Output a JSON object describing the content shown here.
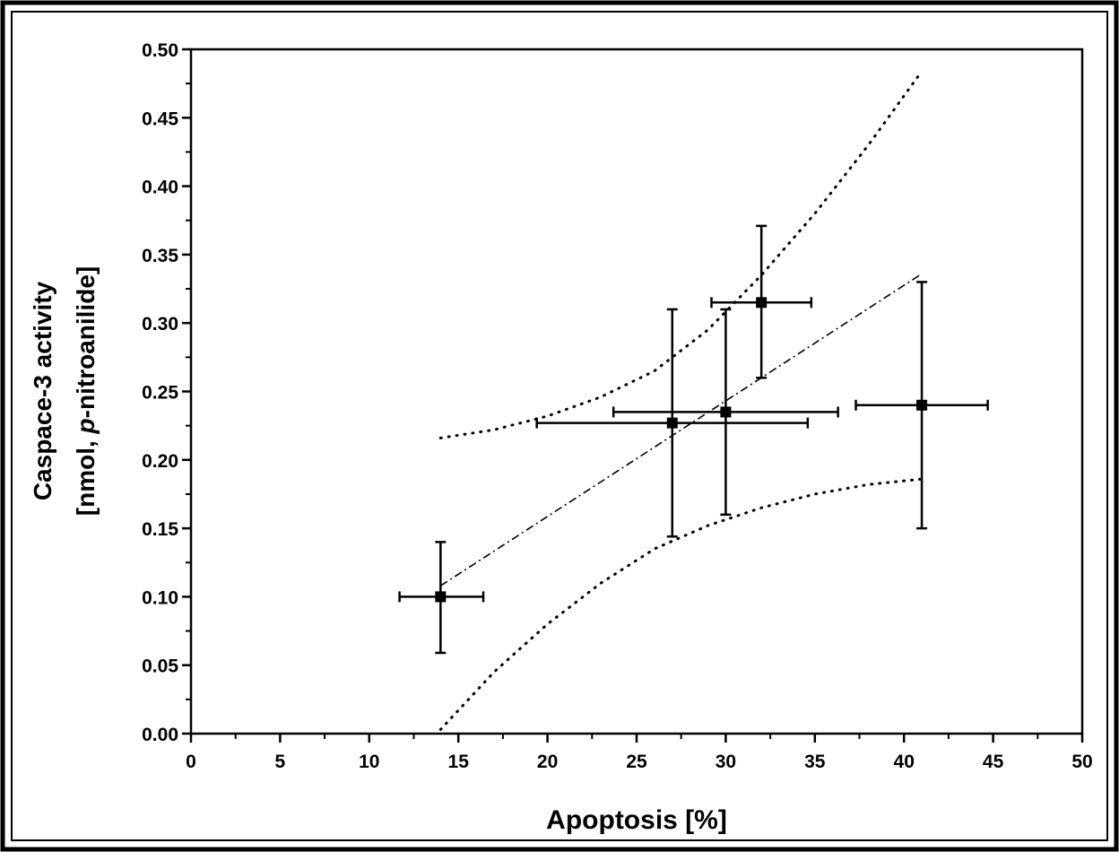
{
  "chart_data": {
    "type": "scatter",
    "title": "",
    "xlabel": "Apoptosis [%]",
    "ylabel_line1": "Caspace-3 activity",
    "ylabel_line2_pre": "[nmol, ",
    "ylabel_line2_italic": "p",
    "ylabel_line2_post": "-nitroanilide]",
    "xlim": [
      0,
      50
    ],
    "ylim": [
      0,
      0.5
    ],
    "x_ticks": [
      "0",
      "5",
      "10",
      "15",
      "20",
      "25",
      "30",
      "35",
      "40",
      "45",
      "50"
    ],
    "y_ticks": [
      "0.00",
      "0.05",
      "0.10",
      "0.15",
      "0.20",
      "0.25",
      "0.30",
      "0.35",
      "0.40",
      "0.45",
      "0.50"
    ],
    "grid": false,
    "points": [
      {
        "x": 14,
        "y": 0.1,
        "xerr": [
          11.7,
          16.4
        ],
        "yerr": [
          0.059,
          0.14
        ]
      },
      {
        "x": 27,
        "y": 0.227,
        "xerr": [
          19.4,
          34.6
        ],
        "yerr": [
          0.144,
          0.31
        ]
      },
      {
        "x": 30,
        "y": 0.235,
        "xerr": [
          23.7,
          36.3
        ],
        "yerr": [
          0.16,
          0.31
        ]
      },
      {
        "x": 32,
        "y": 0.315,
        "xerr": [
          29.2,
          34.8
        ],
        "yerr": [
          0.26,
          0.371
        ]
      },
      {
        "x": 41,
        "y": 0.24,
        "xerr": [
          37.3,
          44.7
        ],
        "yerr": [
          0.15,
          0.33
        ]
      }
    ],
    "fit_line": {
      "style": "dash-dot",
      "x": [
        14,
        41
      ],
      "y": [
        0.108,
        0.336
      ]
    },
    "confidence_upper": {
      "style": "dotted",
      "x": [
        14,
        17,
        20,
        23,
        26,
        29,
        32,
        35,
        38,
        41
      ],
      "y": [
        0.216,
        0.222,
        0.232,
        0.246,
        0.265,
        0.295,
        0.335,
        0.38,
        0.43,
        0.484
      ]
    },
    "confidence_lower": {
      "style": "dotted",
      "x": [
        14,
        17,
        20,
        23,
        26,
        29,
        32,
        35,
        38,
        41
      ],
      "y": [
        0.003,
        0.045,
        0.08,
        0.11,
        0.135,
        0.152,
        0.165,
        0.175,
        0.182,
        0.186
      ]
    }
  }
}
